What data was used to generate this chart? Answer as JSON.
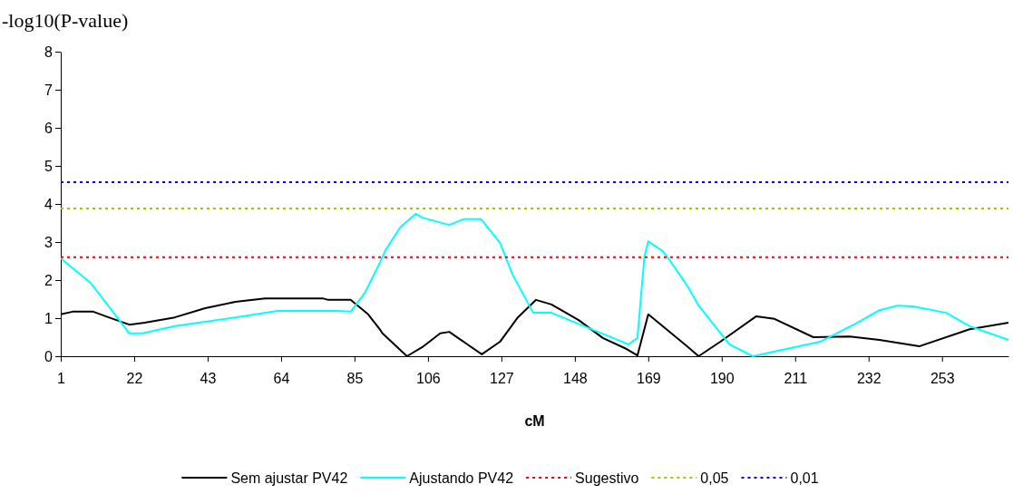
{
  "chart_data": {
    "type": "line",
    "ylabel": "-log10(P-value)",
    "xlabel": "cM",
    "xlim": [
      1,
      272
    ],
    "xticks": [
      1,
      22,
      43,
      64,
      85,
      106,
      127,
      148,
      169,
      190,
      211,
      232,
      253
    ],
    "ylim": [
      0,
      8
    ],
    "yticks": [
      0,
      1,
      2,
      3,
      4,
      5,
      6,
      7,
      8
    ],
    "grid": false,
    "legend": "bottom",
    "marker": "none",
    "series": [
      {
        "name": "Sem ajustar PV42",
        "color": "#000000",
        "line_style": "solid",
        "x": [
          1,
          4.4,
          10.3,
          14.7,
          20.6,
          25,
          33.6,
          42.3,
          50.9,
          59.4,
          75.9,
          77.5,
          83.9,
          88.9,
          92.2,
          93,
          100,
          104.4,
          109.5,
          112.1,
          117.3,
          121.4,
          126.6,
          131.7,
          136.9,
          141.3,
          149.1,
          156,
          162.8,
          165.9,
          169,
          173.1,
          180.1,
          183.4,
          189.6,
          199.9,
          205.1,
          216.2,
          226.6,
          235.1,
          246.5,
          260.9,
          272
        ],
        "values": [
          1.1,
          1.17,
          1.17,
          1.02,
          0.83,
          0.88,
          1.02,
          1.26,
          1.43,
          1.52,
          1.52,
          1.48,
          1.48,
          1.1,
          0.71,
          0.6,
          0,
          0.24,
          0.6,
          0.64,
          0.31,
          0.05,
          0.38,
          1.02,
          1.48,
          1.36,
          0.95,
          0.48,
          0.19,
          0.02,
          1.1,
          0.79,
          0.26,
          0,
          0.38,
          1.05,
          0.98,
          0.5,
          0.52,
          0.43,
          0.26,
          0.71,
          0.88
        ]
      },
      {
        "name": "Ajustando PV42",
        "color": "#00ffff",
        "line_style": "solid",
        "x": [
          1,
          9.5,
          16.5,
          20.6,
          24.3,
          33.6,
          50.9,
          63,
          80.1,
          83.9,
          88,
          92.2,
          94,
          98.2,
          102.5,
          104.4,
          112.1,
          116.2,
          121.2,
          126.6,
          130.2,
          136.1,
          141.3,
          160.2,
          163.3,
          165.9,
          167.9,
          169,
          173.1,
          174.9,
          180.1,
          183.4,
          192.2,
          198.9,
          218.1,
          228.4,
          235.1,
          240.3,
          244.7,
          254.2,
          260.9,
          272
        ],
        "values": [
          2.57,
          1.93,
          1.1,
          0.6,
          0.6,
          0.79,
          1.02,
          1.19,
          1.19,
          1.17,
          1.67,
          2.45,
          2.81,
          3.4,
          3.74,
          3.64,
          3.45,
          3.6,
          3.6,
          2.98,
          2.14,
          1.14,
          1.14,
          0.43,
          0.31,
          0.48,
          2.62,
          3.02,
          2.76,
          2.55,
          1.86,
          1.33,
          0.31,
          0,
          0.38,
          0.86,
          1.21,
          1.33,
          1.31,
          1.14,
          0.79,
          0.43
        ]
      },
      {
        "name": "Sugestivo",
        "color": "#ff0000",
        "line_style": "dotted",
        "x": [
          1,
          272
        ],
        "values": [
          2.6,
          2.6
        ]
      },
      {
        "name": "0,05",
        "color": "#99cc00",
        "line_style": "dotted",
        "x": [
          1,
          272
        ],
        "values": [
          3.88,
          3.88
        ]
      },
      {
        "name": "0,01",
        "color": "#0000ff",
        "line_style": "dotted",
        "x": [
          1,
          272
        ],
        "values": [
          4.57,
          4.57
        ]
      }
    ]
  }
}
